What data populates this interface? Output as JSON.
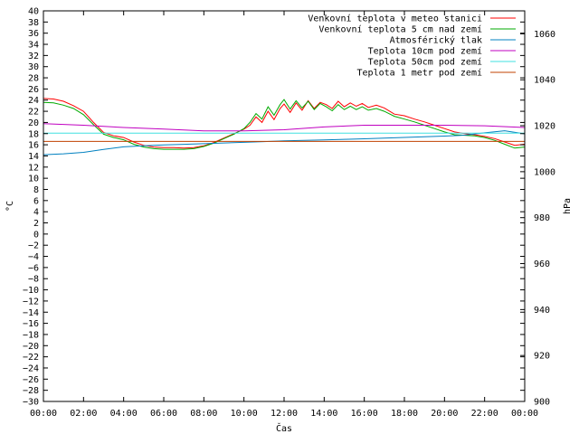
{
  "chart_data": {
    "type": "line",
    "xlabel": "Čas",
    "ylabel": "°C",
    "y2label": "hPa",
    "x_ticks": [
      "00:00",
      "02:00",
      "04:00",
      "06:00",
      "08:00",
      "10:00",
      "12:00",
      "14:00",
      "16:00",
      "18:00",
      "20:00",
      "22:00",
      "00:00"
    ],
    "xlim_hours": [
      0,
      24
    ],
    "ylim": [
      -30,
      40
    ],
    "y_tick_step": 2,
    "y2lim": [
      900,
      1070
    ],
    "y2_tick_step": 20,
    "legend_position": "top-right",
    "series": [
      {
        "name": "Venkovní teplota v meteo stanici",
        "color": "#ff0000",
        "axis": "y",
        "x": [
          0,
          0.5,
          1,
          1.5,
          2,
          2.5,
          3,
          3.5,
          4,
          4.5,
          5,
          5.5,
          6,
          6.5,
          7,
          7.5,
          8,
          8.5,
          9,
          9.5,
          10,
          10.3,
          10.6,
          10.9,
          11.2,
          11.5,
          11.8,
          12,
          12.3,
          12.6,
          12.9,
          13.2,
          13.5,
          13.8,
          14.1,
          14.4,
          14.7,
          15,
          15.3,
          15.6,
          15.9,
          16.2,
          16.6,
          17,
          17.5,
          18,
          18.5,
          19,
          19.5,
          20,
          20.5,
          21,
          21.5,
          22,
          22.5,
          23,
          23.5,
          24
        ],
        "values": [
          24.3,
          24.2,
          23.8,
          23,
          22,
          20,
          18.2,
          17.6,
          17.3,
          16.5,
          15.9,
          15.6,
          15.5,
          15.5,
          15.4,
          15.5,
          15.8,
          16.4,
          17.2,
          18,
          18.8,
          19.5,
          21,
          20,
          22,
          20.5,
          22.5,
          23.3,
          21.8,
          23.5,
          22.2,
          23.9,
          22.5,
          23.6,
          23.2,
          22.5,
          23.8,
          22.8,
          23.5,
          22.9,
          23.4,
          22.7,
          23.1,
          22.6,
          21.5,
          21.2,
          20.6,
          20.1,
          19.5,
          18.9,
          18.3,
          18,
          17.8,
          17.5,
          17.1,
          16.5,
          15.9,
          16.1
        ]
      },
      {
        "name": "Venkovní teplota 5 cm nad zemí",
        "color": "#00aa00",
        "axis": "y",
        "x": [
          0,
          0.5,
          1,
          1.5,
          2,
          2.5,
          3,
          3.5,
          4,
          4.5,
          5,
          5.5,
          6,
          6.5,
          7,
          7.5,
          8,
          8.5,
          9,
          9.5,
          10,
          10.3,
          10.6,
          10.9,
          11.2,
          11.5,
          11.8,
          12,
          12.3,
          12.6,
          12.9,
          13.2,
          13.5,
          13.8,
          14.1,
          14.4,
          14.7,
          15,
          15.3,
          15.6,
          15.9,
          16.2,
          16.6,
          17,
          17.5,
          18,
          18.5,
          19,
          19.5,
          20,
          20.5,
          21,
          21.5,
          22,
          22.5,
          23,
          23.5,
          24
        ],
        "values": [
          23.6,
          23.5,
          23.1,
          22.5,
          21.4,
          19.6,
          17.9,
          17.3,
          16.9,
          16.1,
          15.6,
          15.3,
          15.2,
          15.2,
          15.2,
          15.3,
          15.7,
          16.3,
          17.1,
          17.9,
          18.9,
          20,
          21.6,
          20.6,
          22.8,
          21.3,
          23.2,
          24.1,
          22.4,
          23.9,
          22.6,
          23.8,
          22.3,
          23.4,
          22.8,
          22.1,
          23.2,
          22.3,
          22.9,
          22.3,
          22.8,
          22.2,
          22.5,
          22,
          21.1,
          20.6,
          20.1,
          19.5,
          18.9,
          18.3,
          17.8,
          17.7,
          17.6,
          17.3,
          16.8,
          16.1,
          15.4,
          15.6
        ]
      },
      {
        "name": "Atmosférický tlak",
        "color": "#0080c0",
        "axis": "y2",
        "x": [
          0,
          1,
          2,
          3,
          4,
          5,
          6,
          7,
          8,
          9,
          10,
          11,
          12,
          13,
          14,
          15,
          16,
          17,
          18,
          19,
          20,
          21,
          22,
          23,
          24
        ],
        "values": [
          1007.4,
          1007.8,
          1008.4,
          1009.7,
          1010.8,
          1011.3,
          1011.7,
          1011.9,
          1012.2,
          1012.5,
          1012.8,
          1013.1,
          1013.4,
          1013.6,
          1013.8,
          1014.1,
          1014.3,
          1014.6,
          1014.9,
          1015.2,
          1015.5,
          1015.9,
          1016.9,
          1017.8,
          1016.5
        ]
      },
      {
        "name": "Teplota 10cm pod zemí",
        "color": "#c000c0",
        "axis": "y",
        "x": [
          0,
          2,
          4,
          6,
          8,
          10,
          12,
          14,
          16,
          18,
          20,
          22,
          24
        ],
        "values": [
          19.8,
          19.5,
          19.1,
          18.8,
          18.5,
          18.5,
          18.7,
          19.2,
          19.5,
          19.5,
          19.5,
          19.4,
          19.1
        ]
      },
      {
        "name": "Teplota 50cm pod zemí",
        "color": "#40e0e0",
        "axis": "y",
        "x": [
          0,
          24
        ],
        "values": [
          18.1,
          18.1
        ]
      },
      {
        "name": "Teplota 1 metr pod zemí",
        "color": "#c04000",
        "axis": "y",
        "x": [
          0,
          24
        ],
        "values": [
          16.6,
          16.6
        ]
      }
    ]
  }
}
